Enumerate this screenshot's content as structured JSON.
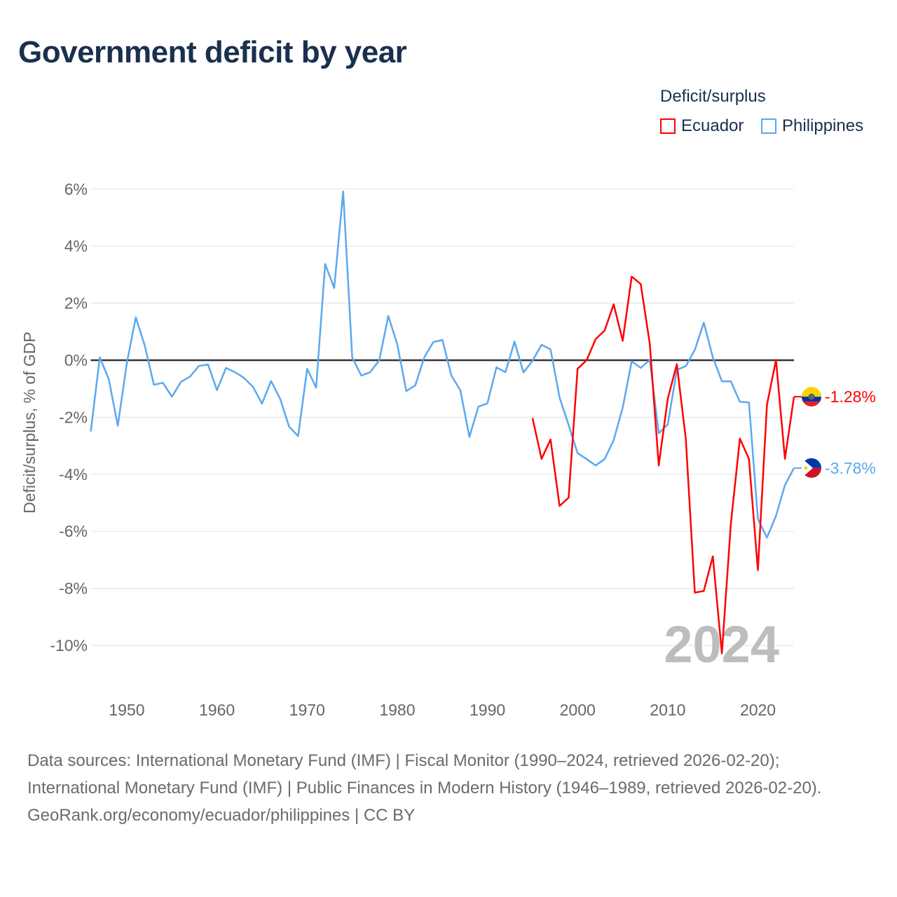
{
  "title": "Government deficit by year",
  "legend": {
    "title": "Deficit/surplus",
    "items": [
      {
        "name": "Ecuador",
        "color": "#ff0000"
      },
      {
        "name": "Philippines",
        "color": "#5ba8ef"
      }
    ]
  },
  "footer": {
    "sources": "Data sources: International Monetary Fund (IMF) | Fiscal Monitor (1990–2024, retrieved 2026-02-20); International Monetary Fund (IMF) | Public Finances in Modern History (1946–1989, retrieved 2026-02-20).",
    "credit": "GeoRank.org/economy/ecuador/philippines | CC BY"
  },
  "chart_data": {
    "type": "line",
    "title": "Government deficit by year",
    "ylabel": "Deficit/surplus, % of GDP",
    "xlabel": "",
    "xlim": [
      1946,
      2024
    ],
    "ylim": [
      -11,
      6.5
    ],
    "xticks": [
      {
        "value": 1950,
        "label": "1950"
      },
      {
        "value": 1960,
        "label": "1960"
      },
      {
        "value": 1970,
        "label": "1970"
      },
      {
        "value": 1980,
        "label": "1980"
      },
      {
        "value": 1990,
        "label": "1990"
      },
      {
        "value": 2000,
        "label": "2000"
      },
      {
        "value": 2010,
        "label": "2010"
      },
      {
        "value": 2020,
        "label": "2020"
      }
    ],
    "yticks": [
      {
        "value": 6,
        "label": "6%"
      },
      {
        "value": 4,
        "label": "4%"
      },
      {
        "value": 2,
        "label": "2%"
      },
      {
        "value": 0,
        "label": "0%"
      },
      {
        "value": -2,
        "label": "-2%"
      },
      {
        "value": -4,
        "label": "-4%"
      },
      {
        "value": -6,
        "label": "-6%"
      },
      {
        "value": -8,
        "label": "-8%"
      },
      {
        "value": -10,
        "label": "-10%"
      }
    ],
    "grid": true,
    "year_watermark": "2024",
    "series": [
      {
        "name": "Ecuador",
        "color": "#ff0000",
        "start_year": 1995,
        "end_label": "-1.28%",
        "values": [
          -2.03,
          -3.46,
          -2.78,
          -5.11,
          -4.82,
          -0.3,
          0.0,
          0.74,
          1.04,
          1.96,
          0.68,
          2.93,
          2.67,
          0.58,
          -3.69,
          -1.35,
          -0.14,
          -2.75,
          -8.15,
          -8.09,
          -6.88,
          -10.28,
          -5.74,
          -2.75,
          -3.46,
          -7.36,
          -1.57,
          0.01,
          -3.46,
          -1.28
        ]
      },
      {
        "name": "Philippines",
        "color": "#5ba8ef",
        "start_year": 1946,
        "end_label": "-3.78%",
        "values": [
          -2.5,
          0.1,
          -0.66,
          -2.3,
          -0.1,
          1.5,
          0.5,
          -0.86,
          -0.79,
          -1.28,
          -0.76,
          -0.58,
          -0.2,
          -0.15,
          -1.05,
          -0.27,
          -0.42,
          -0.62,
          -0.94,
          -1.52,
          -0.73,
          -1.35,
          -2.33,
          -2.66,
          -0.3,
          -0.96,
          3.37,
          2.53,
          5.92,
          0.1,
          -0.54,
          -0.42,
          0.0,
          1.55,
          0.56,
          -1.08,
          -0.88,
          0.1,
          0.64,
          0.71,
          -0.54,
          -1.06,
          -2.69,
          -1.63,
          -1.51,
          -0.25,
          -0.42,
          0.65,
          -0.43,
          -0.02,
          0.54,
          0.38,
          -1.31,
          -2.27,
          -3.26,
          -3.47,
          -3.69,
          -3.47,
          -2.8,
          -1.66,
          -0.04,
          -0.27,
          0.01,
          -2.56,
          -2.25,
          -0.34,
          -0.21,
          0.36,
          1.32,
          0.1,
          -0.74,
          -0.74,
          -1.46,
          -1.48,
          -5.56,
          -6.22,
          -5.46,
          -4.38,
          -3.78
        ]
      }
    ]
  }
}
